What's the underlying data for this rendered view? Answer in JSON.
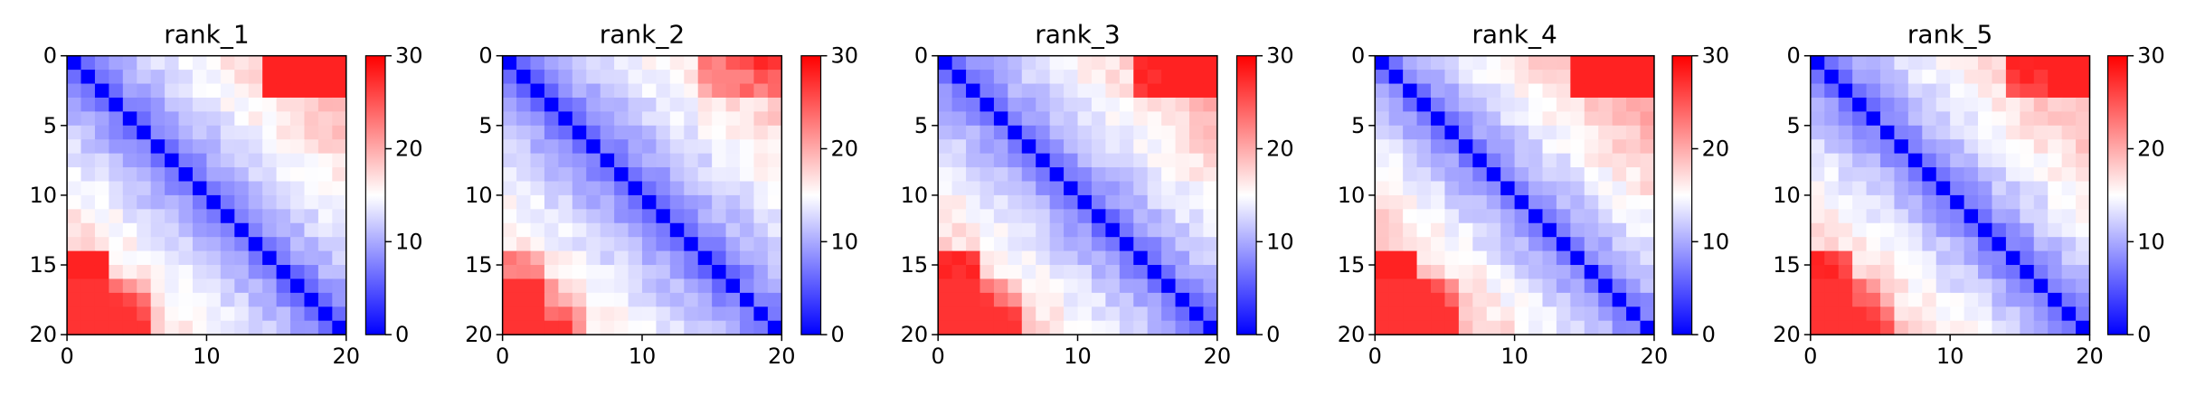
{
  "chart_data": [
    {
      "type": "heatmap",
      "title": "rank_1",
      "xlabel": "",
      "ylabel": "",
      "grid_size": 20,
      "x_ticks": [
        0,
        10,
        20
      ],
      "y_ticks": [
        0,
        5,
        10,
        15,
        20
      ],
      "colorbar": {
        "min": 0,
        "max": 30,
        "ticks": [
          0,
          10,
          20,
          30
        ],
        "colormap": "bwr"
      },
      "offdiag_scale": 4.5,
      "corner_boost": {
        "top_right": 1.7,
        "bottom_left": 2.2
      },
      "noise_seed": 11
    },
    {
      "type": "heatmap",
      "title": "rank_2",
      "xlabel": "",
      "ylabel": "",
      "grid_size": 20,
      "x_ticks": [
        0,
        10,
        20
      ],
      "y_ticks": [
        0,
        5,
        10,
        15,
        20
      ],
      "colorbar": {
        "min": 0,
        "max": 30,
        "ticks": [
          0,
          10,
          20,
          30
        ],
        "colormap": "bwr"
      },
      "offdiag_scale": 4.2,
      "corner_boost": {
        "top_right": 1.3,
        "bottom_left": 1.9
      },
      "noise_seed": 23
    },
    {
      "type": "heatmap",
      "title": "rank_3",
      "xlabel": "",
      "ylabel": "",
      "grid_size": 20,
      "x_ticks": [
        0,
        10,
        20
      ],
      "y_ticks": [
        0,
        5,
        10,
        15,
        20
      ],
      "colorbar": {
        "min": 0,
        "max": 30,
        "ticks": [
          0,
          10,
          20,
          30
        ],
        "colormap": "bwr"
      },
      "offdiag_scale": 4.5,
      "corner_boost": {
        "top_right": 1.6,
        "bottom_left": 2.2
      },
      "noise_seed": 37
    },
    {
      "type": "heatmap",
      "title": "rank_4",
      "xlabel": "",
      "ylabel": "",
      "grid_size": 20,
      "x_ticks": [
        0,
        10,
        20
      ],
      "y_ticks": [
        0,
        5,
        10,
        15,
        20
      ],
      "colorbar": {
        "min": 0,
        "max": 30,
        "ticks": [
          0,
          10,
          20,
          30
        ],
        "colormap": "bwr"
      },
      "offdiag_scale": 4.8,
      "corner_boost": {
        "top_right": 1.8,
        "bottom_left": 2.4
      },
      "noise_seed": 51
    },
    {
      "type": "heatmap",
      "title": "rank_5",
      "xlabel": "",
      "ylabel": "",
      "grid_size": 20,
      "x_ticks": [
        0,
        10,
        20
      ],
      "y_ticks": [
        0,
        5,
        10,
        15,
        20
      ],
      "colorbar": {
        "min": 0,
        "max": 30,
        "ticks": [
          0,
          10,
          20,
          30
        ],
        "colormap": "bwr"
      },
      "offdiag_scale": 4.6,
      "corner_boost": {
        "top_right": 1.5,
        "bottom_left": 2.0
      },
      "noise_seed": 67
    }
  ]
}
